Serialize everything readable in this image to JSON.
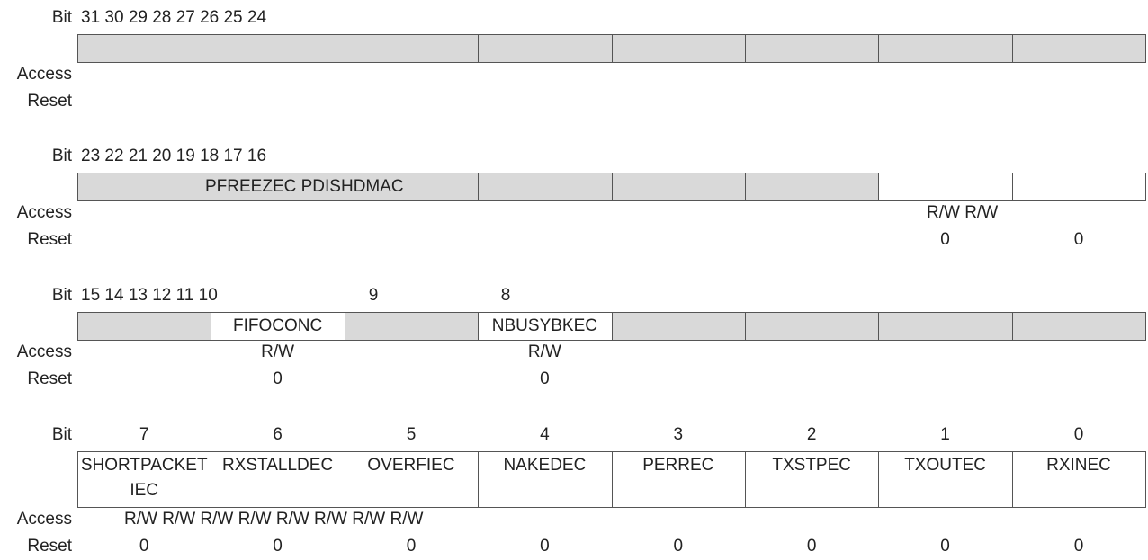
{
  "rows": [
    {
      "bit_label": "Bit",
      "bit_numbers": [
        "31 30 29 28 27 26 25 24"
      ],
      "access_label": "Access",
      "reset_label": "Reset",
      "fields": [],
      "access": [],
      "reset": []
    },
    {
      "bit_label": "Bit",
      "bit_numbers": [
        "23 22 21 20 19 18 17 16"
      ],
      "access_label": "Access",
      "reset_label": "Reset",
      "fields": [
        "PFREEZEC PDISHDMAC"
      ],
      "access": [
        "R/W R/W"
      ],
      "reset": [
        "0",
        "0"
      ]
    },
    {
      "bit_label": "Bit",
      "bit_numbers": [
        "15 14 13 12 11 10",
        "9",
        "8"
      ],
      "access_label": "Access",
      "reset_label": "Reset",
      "fields": [
        "FIFOCONC",
        "NBUSYBKEC"
      ],
      "access": [
        "R/W",
        "R/W"
      ],
      "reset": [
        "0",
        "0"
      ]
    },
    {
      "bit_label": "Bit",
      "bit_numbers": [
        "7",
        "6",
        "5",
        "4",
        "3",
        "2",
        "1",
        "0"
      ],
      "access_label": "Access",
      "reset_label": "Reset",
      "fields": [
        "SHORTPACKETIEC",
        "RXSTALLDEC",
        "OVERFIEC",
        "NAKEDEC",
        "PERREC",
        "TXSTPEC",
        "TXOUTEC",
        "RXINEC"
      ],
      "access": [
        "R/W R/W R/W R/W R/W R/W R/W R/W"
      ],
      "reset": [
        "0",
        "0",
        "0",
        "0",
        "0",
        "0",
        "0",
        "0"
      ]
    }
  ]
}
